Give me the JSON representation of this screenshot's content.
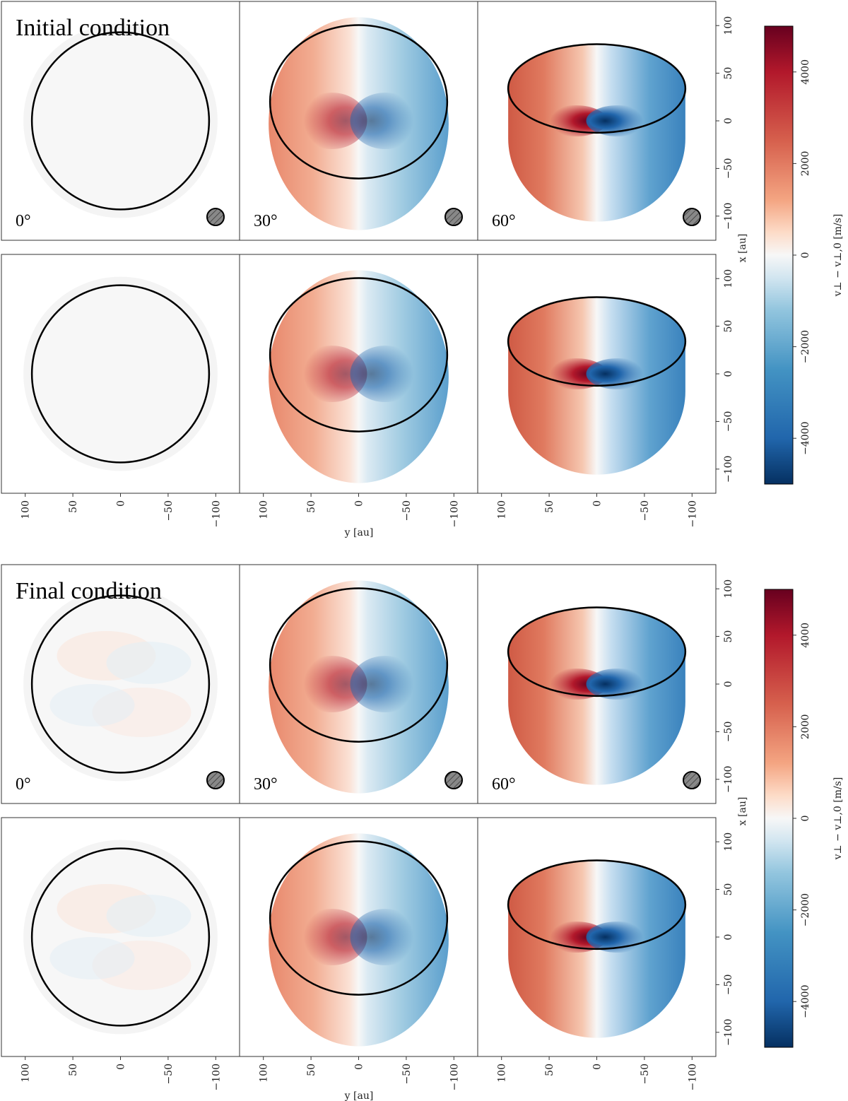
{
  "chart_data": {
    "type": "image",
    "figure_kind": "projected line-of-sight velocity maps of a protoplanetary disc",
    "colormap": "RdBu_r",
    "colorbar": {
      "label": "v⊥ − v⊥,0 [m/s]",
      "range": [
        -5000,
        5000
      ],
      "ticks": [
        4000,
        2000,
        0,
        -2000,
        -4000
      ],
      "tick_labels": [
        "4000",
        "2000",
        "0",
        "−2000",
        "−4000"
      ]
    },
    "axes": {
      "xlabel": "y [au]",
      "ylabel": "x [au]",
      "x_ticks": [
        100,
        50,
        0,
        -50,
        -100
      ],
      "x_tick_labels": [
        "100",
        "50",
        "0",
        "−50",
        "−100"
      ],
      "y_ticks": [
        100,
        50,
        0,
        -50,
        -100
      ],
      "y_tick_labels": [
        "100",
        "50",
        "0",
        "−50",
        "−100"
      ],
      "xlim": [
        125,
        -125
      ],
      "ylim": [
        -125,
        125
      ]
    },
    "inclinations": [
      "0°",
      "30°",
      "60°"
    ],
    "blocks": [
      {
        "title": "Initial condition",
        "rows": 2,
        "peak_amplitude_ms": 4500
      },
      {
        "title": "Final condition",
        "rows": 2,
        "peak_amplitude_ms": 4500
      }
    ]
  }
}
